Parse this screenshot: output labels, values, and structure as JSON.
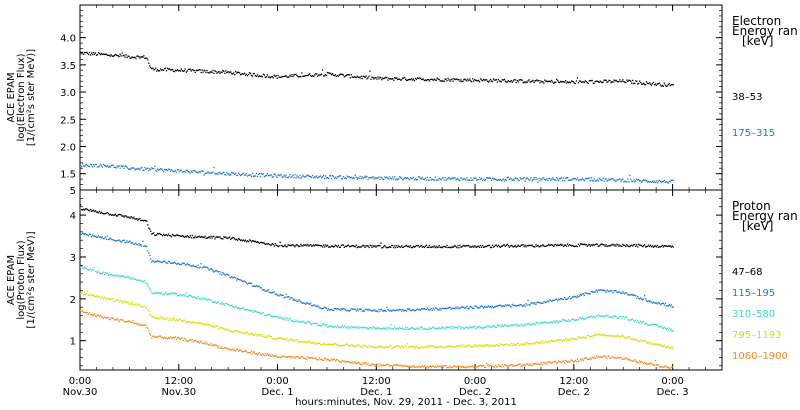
{
  "chart_data": [
    {
      "type": "scatter",
      "ylabel": [
        "ACE EPAM",
        "log(Electron Flux)",
        "[1/(cm²s ster MeV)]"
      ],
      "ylim": [
        1.2,
        4.6
      ],
      "yticks": [
        1.5,
        2.0,
        2.5,
        3.0,
        3.5,
        4.0
      ],
      "ytick_labels": [
        "1.5",
        "2.0",
        "2.5",
        "3.0",
        "3.5",
        "4.0"
      ],
      "bottom_label": "5",
      "legend": {
        "title": [
          "Electron",
          "Energy ran",
          "[keV]"
        ],
        "placement": "right"
      },
      "series": [
        {
          "name": "38–53",
          "color": "#000000",
          "x": [
            0,
            6,
            8,
            8.6,
            12,
            18,
            24,
            30,
            36,
            48,
            60,
            66,
            72
          ],
          "y": [
            3.72,
            3.65,
            3.64,
            3.42,
            3.4,
            3.36,
            3.28,
            3.33,
            3.25,
            3.22,
            3.18,
            3.2,
            3.12
          ]
        },
        {
          "name": "175–315",
          "color": "#1f77d0",
          "x": [
            0,
            3,
            6,
            12,
            18,
            24,
            36,
            48,
            60,
            66,
            72
          ],
          "y": [
            1.66,
            1.65,
            1.6,
            1.55,
            1.5,
            1.46,
            1.42,
            1.4,
            1.4,
            1.38,
            1.35
          ]
        }
      ]
    },
    {
      "type": "scatter",
      "ylabel": [
        "ACE EPAM",
        "log(Proton Flux)",
        "[1/(cm²s ster MeV)]"
      ],
      "ylim": [
        0.3,
        4.6
      ],
      "yticks": [
        1,
        2,
        3,
        4
      ],
      "ytick_labels": [
        "1",
        "2",
        "3",
        "4"
      ],
      "legend": {
        "title": [
          "Proton",
          "Energy ran",
          "[keV]"
        ],
        "placement": "right"
      },
      "series": [
        {
          "name": "47–68",
          "color": "#000000",
          "x": [
            0,
            3,
            6,
            8,
            8.6,
            12,
            18,
            24,
            36,
            48,
            60,
            66,
            72
          ],
          "y": [
            4.15,
            4.05,
            3.95,
            3.85,
            3.55,
            3.5,
            3.45,
            3.28,
            3.25,
            3.25,
            3.28,
            3.28,
            3.25
          ]
        },
        {
          "name": "115–195",
          "color": "#1f77d0",
          "x": [
            0,
            3,
            6,
            8,
            8.6,
            12,
            15,
            18,
            24,
            30,
            36,
            42,
            48,
            54,
            60,
            63,
            66,
            69,
            72
          ],
          "y": [
            3.55,
            3.45,
            3.35,
            3.25,
            2.9,
            2.85,
            2.75,
            2.55,
            2.1,
            1.75,
            1.72,
            1.75,
            1.8,
            1.85,
            2.05,
            2.2,
            2.15,
            1.95,
            1.82
          ]
        },
        {
          "name": "310–580",
          "color": "#3dd9c9",
          "x": [
            0,
            3,
            6,
            8,
            8.6,
            12,
            15,
            18,
            24,
            30,
            36,
            42,
            48,
            54,
            60,
            63,
            66,
            69,
            72
          ],
          "y": [
            2.75,
            2.6,
            2.5,
            2.4,
            2.15,
            2.1,
            2.0,
            1.85,
            1.55,
            1.35,
            1.3,
            1.3,
            1.32,
            1.38,
            1.5,
            1.6,
            1.55,
            1.4,
            1.25
          ]
        },
        {
          "name": "795–1193",
          "color": "#d4e000",
          "x": [
            0,
            3,
            6,
            8,
            8.6,
            12,
            15,
            18,
            24,
            30,
            36,
            42,
            48,
            54,
            60,
            63,
            66,
            69,
            72
          ],
          "y": [
            2.15,
            2.0,
            1.9,
            1.8,
            1.55,
            1.5,
            1.4,
            1.25,
            1.05,
            0.92,
            0.85,
            0.85,
            0.88,
            0.92,
            1.05,
            1.15,
            1.1,
            0.95,
            0.82
          ]
        },
        {
          "name": "1060–1900",
          "color": "#f08a1c",
          "x": [
            0,
            3,
            6,
            8,
            8.6,
            12,
            15,
            18,
            24,
            30,
            36,
            42,
            48,
            54,
            60,
            63,
            66,
            69,
            72
          ],
          "y": [
            1.7,
            1.55,
            1.45,
            1.35,
            1.1,
            1.05,
            0.95,
            0.8,
            0.62,
            0.55,
            0.42,
            0.38,
            0.38,
            0.42,
            0.52,
            0.62,
            0.58,
            0.45,
            0.35
          ]
        }
      ]
    }
  ],
  "x_axis": {
    "range_hours": [
      0,
      78
    ],
    "ticks": [
      {
        "t": 0,
        "line1": "0:00",
        "line2": "Nov.30"
      },
      {
        "t": 12,
        "line1": "12:00",
        "line2": "Nov.30"
      },
      {
        "t": 24,
        "line1": "0:00",
        "line2": "Dec. 1"
      },
      {
        "t": 36,
        "line1": "12:00",
        "line2": "Dec. 1"
      },
      {
        "t": 48,
        "line1": "0:00",
        "line2": "Dec. 2"
      },
      {
        "t": 60,
        "line1": "12:00",
        "line2": "Dec. 2"
      },
      {
        "t": 72,
        "line1": "0:00",
        "line2": "Dec. 3"
      }
    ],
    "xlabel": "hours:minutes, Nov. 29, 2011 - Dec.  3, 2011"
  }
}
